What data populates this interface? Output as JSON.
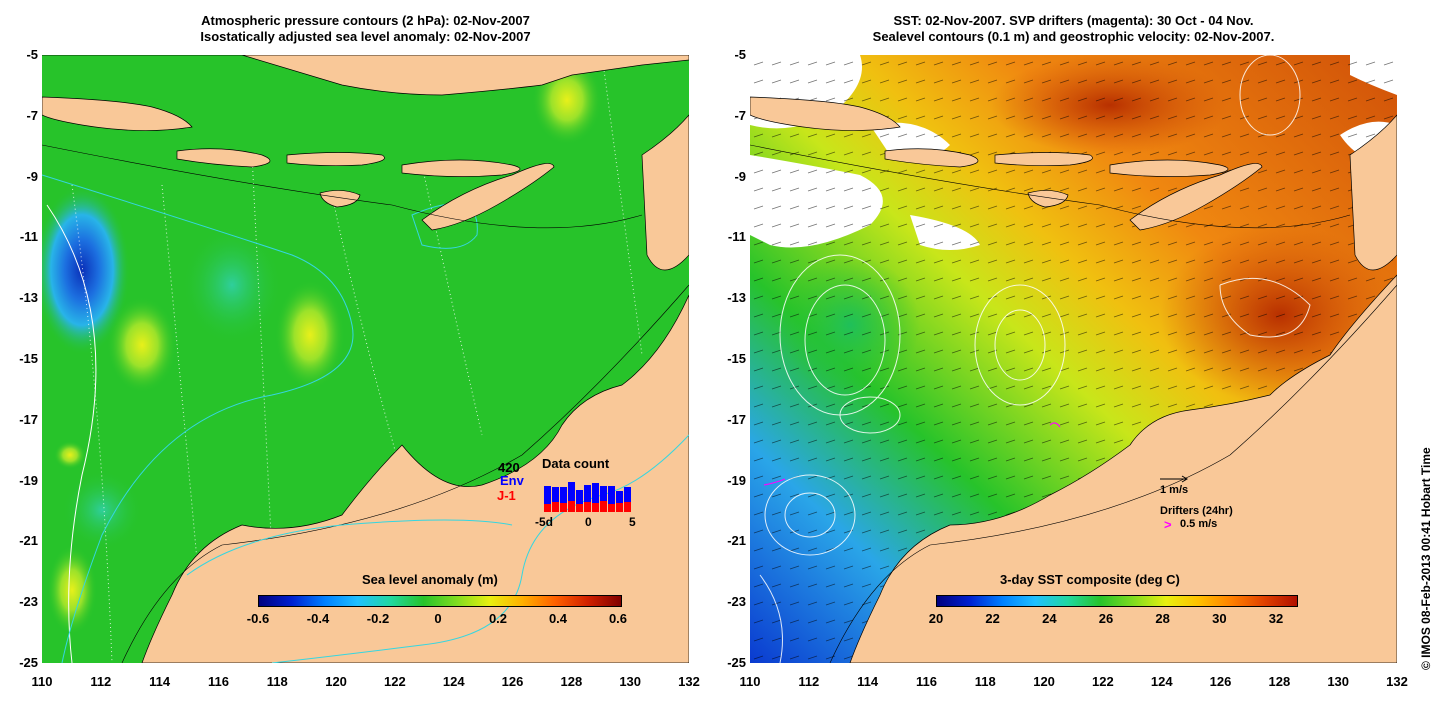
{
  "left_panel": {
    "title_line1": "Atmospheric pressure contours (2 hPa): 02-Nov-2007",
    "title_line2": "Isostatically adjusted sea level anomaly: 02-Nov-2007",
    "colorbar": {
      "label": "Sea level anomaly (m)",
      "ticks": [
        "-0.6",
        "-0.4",
        "-0.2",
        "0",
        "0.2",
        "0.4",
        "0.6"
      ],
      "range": [
        -0.6,
        0.6
      ]
    },
    "data_count": {
      "title": "Data count",
      "total": "420",
      "env_label": "Env",
      "j1_label": "J-1",
      "axis_labels": [
        "-5d",
        "0",
        "5"
      ],
      "env_color": "#0000ff",
      "j1_color": "#ff0000"
    }
  },
  "right_panel": {
    "title_line1": "SST: 02-Nov-2007. SVP drifters (magenta): 30 Oct - 04 Nov.",
    "title_line2": "Sealevel contours (0.1 m) and geostrophic velocity: 02-Nov-2007.",
    "colorbar": {
      "label": "3-day SST composite (deg C)",
      "ticks": [
        "20",
        "22",
        "24",
        "26",
        "28",
        "30",
        "32"
      ],
      "range": [
        20,
        32.5
      ]
    },
    "velocity_legend": "1 m/s",
    "drifters_legend": "Drifters (24hr)",
    "drifters_speed": "0.5 m/s",
    "drifter_symbol": ">",
    "drifter_color": "#ff00ff"
  },
  "y_ticks": [
    "-5",
    "-7",
    "-9",
    "-11",
    "-13",
    "-15",
    "-17",
    "-19",
    "-21",
    "-23",
    "-25"
  ],
  "x_ticks": [
    "110",
    "112",
    "114",
    "116",
    "118",
    "120",
    "122",
    "124",
    "126",
    "128",
    "130",
    "132"
  ],
  "credit": "© IMOS 08-Feb-2013 00:41 Hobart Time",
  "colors": {
    "land": "#f9c898",
    "ocean_base": "#27c32a",
    "warm_sst": "#e0600a"
  }
}
